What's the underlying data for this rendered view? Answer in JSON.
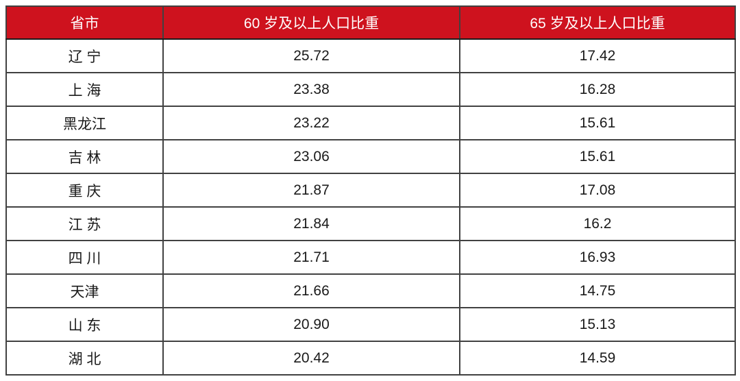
{
  "table": {
    "columns": [
      {
        "label": "省市"
      },
      {
        "label": "60 岁及以上人口比重"
      },
      {
        "label": "65 岁及以上人口比重"
      }
    ],
    "rows": [
      {
        "province": "辽 宁",
        "age60": "25.72",
        "age65": "17.42"
      },
      {
        "province": "上 海",
        "age60": "23.38",
        "age65": "16.28"
      },
      {
        "province": "黑龙江",
        "age60": "23.22",
        "age65": "15.61"
      },
      {
        "province": "吉 林",
        "age60": "23.06",
        "age65": "15.61"
      },
      {
        "province": "重 庆",
        "age60": "21.87",
        "age65": "17.08"
      },
      {
        "province": "江 苏",
        "age60": "21.84",
        "age65": "16.2"
      },
      {
        "province": "四 川",
        "age60": "21.71",
        "age65": "16.93"
      },
      {
        "province": "天津",
        "age60": "21.66",
        "age65": "14.75"
      },
      {
        "province": "山 东",
        "age60": "20.90",
        "age65": "15.13"
      },
      {
        "province": "湖 北",
        "age60": "20.42",
        "age65": "14.59"
      }
    ],
    "colors": {
      "header_bg": "#ce121e",
      "header_text": "#ffffff",
      "grid_line": "#414141",
      "outer_border": "#1c1c1c",
      "cell_text": "#1a1a1a"
    }
  },
  "chart_data": {
    "type": "table",
    "title": "",
    "categories": [
      "辽宁",
      "上海",
      "黑龙江",
      "吉林",
      "重庆",
      "江苏",
      "四川",
      "天津",
      "山东",
      "湖北"
    ],
    "series": [
      {
        "name": "60 岁及以上人口比重",
        "values": [
          25.72,
          23.38,
          23.22,
          23.06,
          21.87,
          21.84,
          21.71,
          21.66,
          20.9,
          20.42
        ]
      },
      {
        "name": "65 岁及以上人口比重",
        "values": [
          17.42,
          16.28,
          15.61,
          15.61,
          17.08,
          16.2,
          16.93,
          14.75,
          15.13,
          14.59
        ]
      }
    ]
  }
}
